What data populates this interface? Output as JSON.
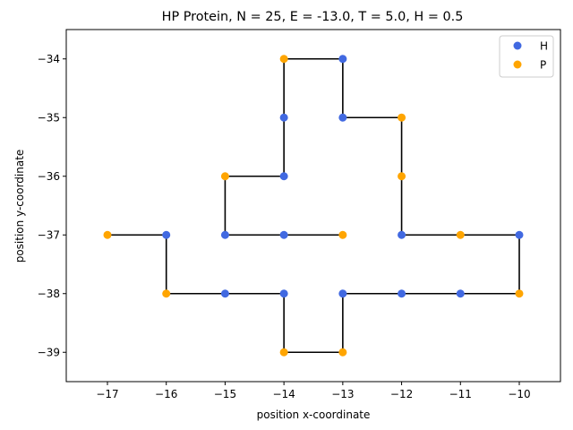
{
  "chart_data": {
    "type": "scatter",
    "title": "HP Protein, N = 25, E = -13.0, T = 5.0, H = 0.5",
    "xlabel": "position x-coordinate",
    "ylabel": "position y-coordinate",
    "xlim": [
      -17.7,
      -9.3
    ],
    "ylim": [
      -39.5,
      -33.5
    ],
    "xticks": [
      -17,
      -16,
      -15,
      -14,
      -13,
      -12,
      -11,
      -10
    ],
    "yticks": [
      -34,
      -35,
      -36,
      -37,
      -38,
      -39
    ],
    "grid": false,
    "legend_position": "upper right",
    "chain_color": "#000000",
    "legend": [
      {
        "label": "H",
        "color": "#4169e1"
      },
      {
        "label": "P",
        "color": "#ffa500"
      }
    ],
    "points": [
      {
        "x": -17,
        "y": -37,
        "type": "P"
      },
      {
        "x": -16,
        "y": -37,
        "type": "H"
      },
      {
        "x": -16,
        "y": -38,
        "type": "P"
      },
      {
        "x": -15,
        "y": -38,
        "type": "H"
      },
      {
        "x": -14,
        "y": -38,
        "type": "H"
      },
      {
        "x": -14,
        "y": -39,
        "type": "P"
      },
      {
        "x": -13,
        "y": -39,
        "type": "P"
      },
      {
        "x": -13,
        "y": -38,
        "type": "H"
      },
      {
        "x": -12,
        "y": -38,
        "type": "H"
      },
      {
        "x": -11,
        "y": -38,
        "type": "H"
      },
      {
        "x": -10,
        "y": -38,
        "type": "P"
      },
      {
        "x": -10,
        "y": -37,
        "type": "H"
      },
      {
        "x": -11,
        "y": -37,
        "type": "P"
      },
      {
        "x": -12,
        "y": -37,
        "type": "H"
      },
      {
        "x": -12,
        "y": -36,
        "type": "P"
      },
      {
        "x": -12,
        "y": -35,
        "type": "P"
      },
      {
        "x": -13,
        "y": -35,
        "type": "H"
      },
      {
        "x": -13,
        "y": -34,
        "type": "H"
      },
      {
        "x": -14,
        "y": -34,
        "type": "P"
      },
      {
        "x": -14,
        "y": -35,
        "type": "H"
      },
      {
        "x": -14,
        "y": -36,
        "type": "H"
      },
      {
        "x": -15,
        "y": -36,
        "type": "P"
      },
      {
        "x": -15,
        "y": -37,
        "type": "H"
      },
      {
        "x": -14,
        "y": -37,
        "type": "H"
      },
      {
        "x": -13,
        "y": -37,
        "type": "P"
      }
    ]
  }
}
